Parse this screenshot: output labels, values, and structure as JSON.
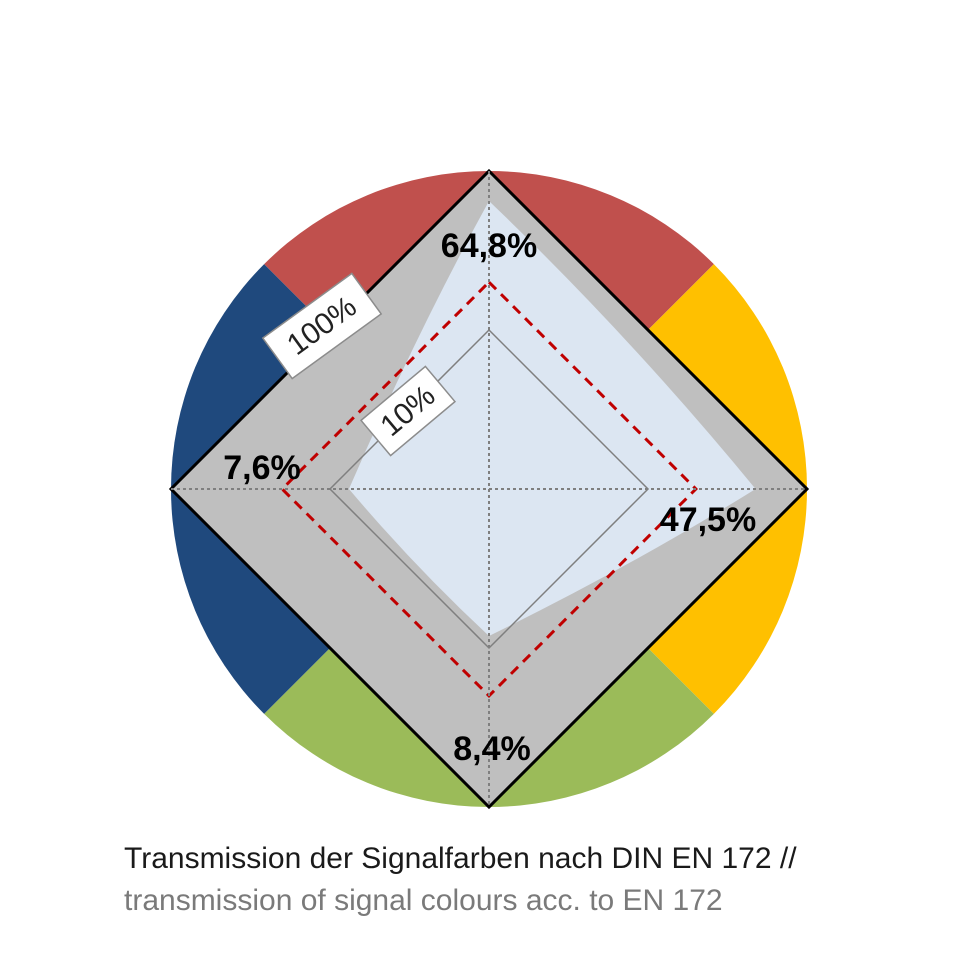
{
  "chart_data": {
    "type": "radar",
    "axes": [
      "top",
      "right",
      "bottom",
      "left"
    ],
    "values_percent": [
      64.8,
      47.5,
      8.4,
      7.6
    ],
    "value_labels": [
      "64,8%",
      "47,5%",
      "8,4%",
      "7,6%"
    ],
    "scale": "log",
    "scale_labels": [
      "10%",
      "100%"
    ],
    "signal_colours": {
      "red": "#C0504D",
      "yellow": "#FFC000",
      "green": "#9BBB59",
      "blue": "#1F497D"
    },
    "reference_line_color": "#C00000",
    "filled_area_color": "#DCE6F2",
    "band_color": "#BFBFBF"
  },
  "caption": {
    "de": "Transmission der Signalfarben nach DIN EN 172 //",
    "en": "transmission of signal colours acc. to EN 172"
  }
}
